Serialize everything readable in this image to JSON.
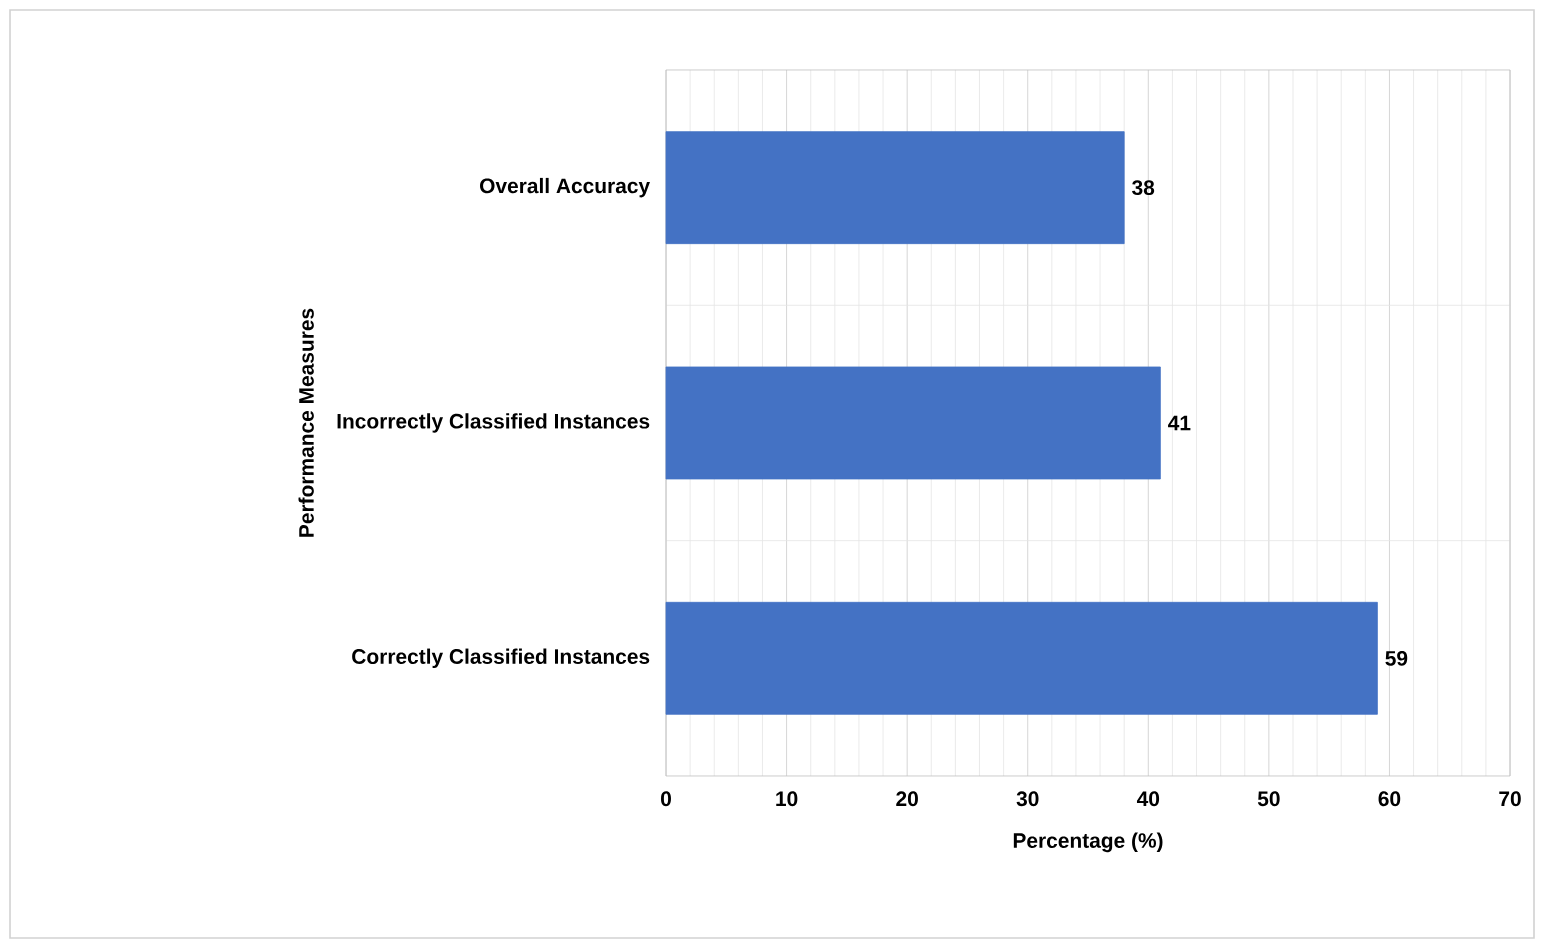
{
  "chart_data": {
    "type": "bar",
    "orientation": "horizontal",
    "xlabel": "Percentage (%)",
    "ylabel": "Performance Measures",
    "categories": [
      "Overall Accuracy",
      "Incorrectly Classified Instances",
      "Correctly Classified Instances"
    ],
    "values": [
      38,
      41,
      59
    ],
    "color": "#4472c4",
    "xlim": [
      0,
      70
    ],
    "xticks": [
      0,
      10,
      20,
      30,
      40,
      50,
      60,
      70
    ],
    "grid": true,
    "data_labels": true
  }
}
